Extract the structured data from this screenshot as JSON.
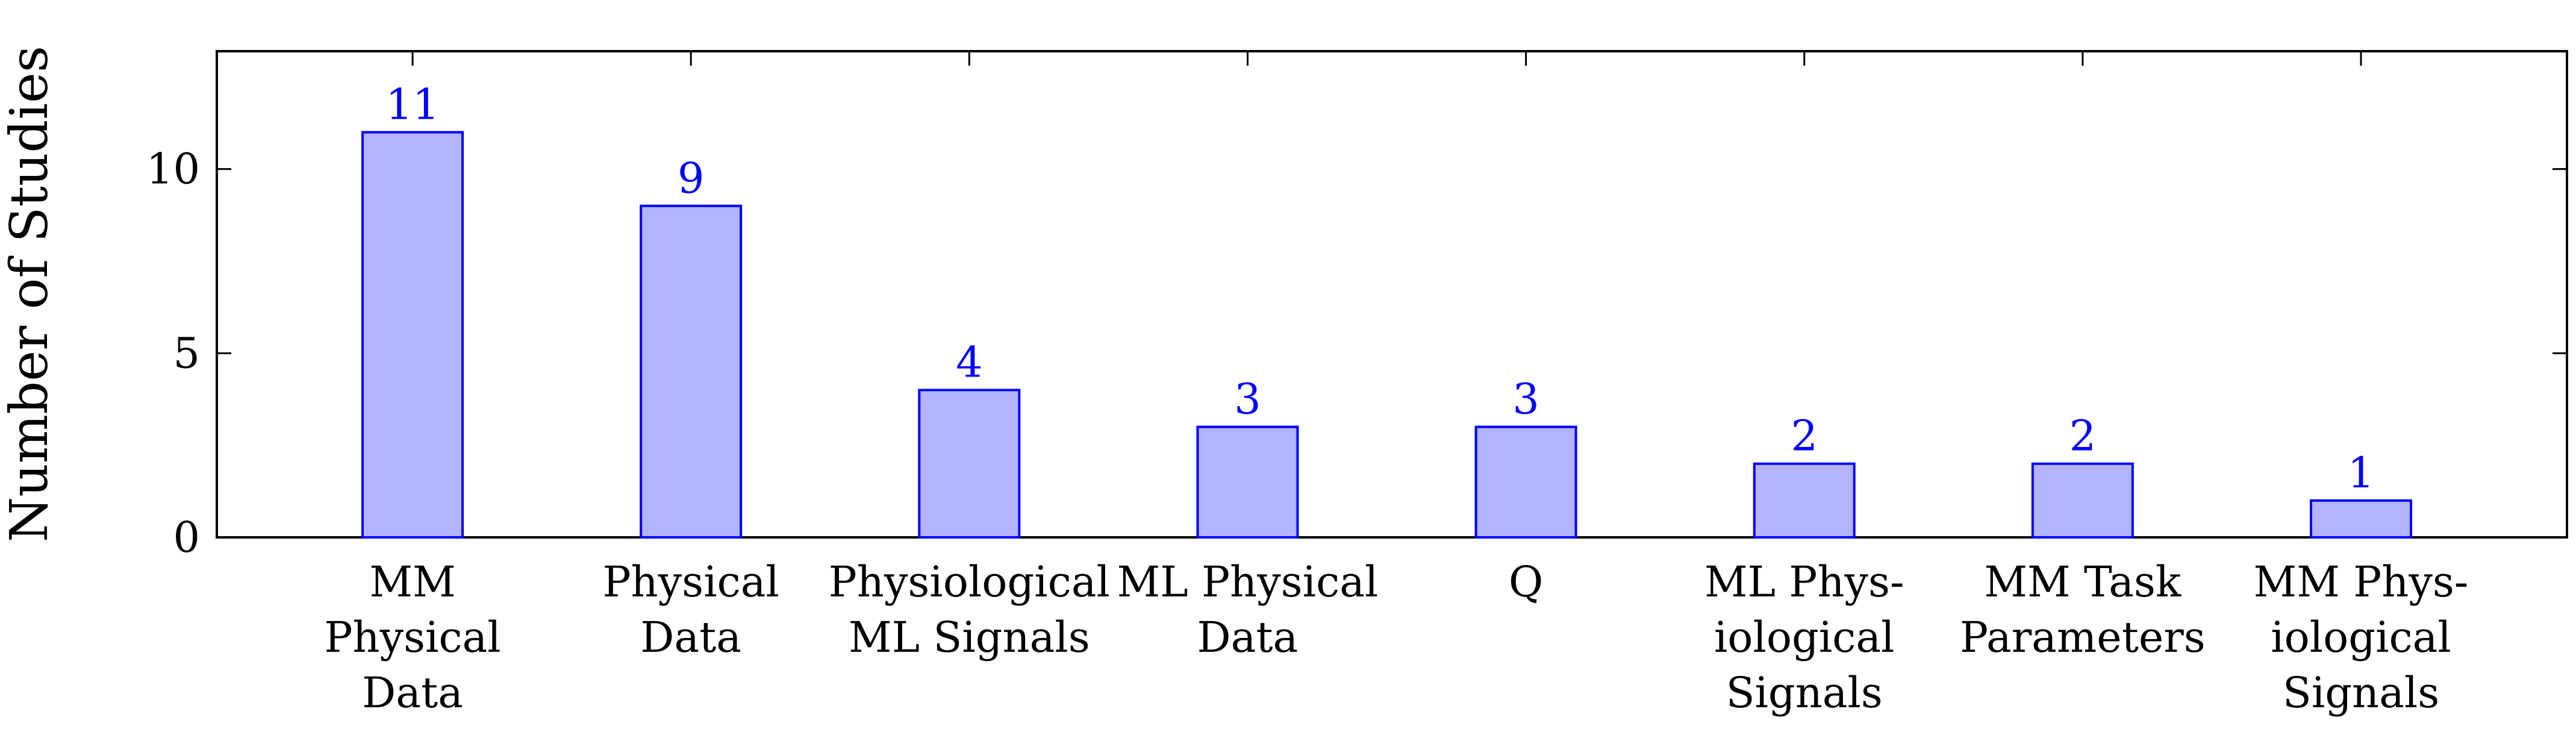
{
  "chart_data": {
    "type": "bar",
    "title": "",
    "xlabel": "",
    "ylabel": "Number of Studies",
    "categories": [
      [
        "MM",
        "Physical",
        "Data"
      ],
      [
        "Physical",
        "Data"
      ],
      [
        "Physiological",
        "ML Signals"
      ],
      [
        "ML Physical",
        "Data"
      ],
      [
        "Q"
      ],
      [
        "ML Phys-",
        "iological",
        "Signals"
      ],
      [
        "MM Task",
        "Parameters"
      ],
      [
        "MM Phys-",
        "iological",
        "Signals"
      ]
    ],
    "values": [
      11,
      9,
      4,
      3,
      3,
      2,
      2,
      1
    ],
    "data_labels": [
      "11",
      "9",
      "4",
      "3",
      "3",
      "2",
      "2",
      "1"
    ],
    "ylim": [
      0,
      13.2
    ],
    "yticks": [
      0,
      5,
      10
    ],
    "ytick_labels": [
      "0",
      "5",
      "10"
    ],
    "grid": false,
    "legend": "none",
    "colors": {
      "bar_fill": "#b3b3ff",
      "bar_stroke": "#0000ff",
      "data_label": "#0000ff",
      "axis": "#000000"
    }
  }
}
